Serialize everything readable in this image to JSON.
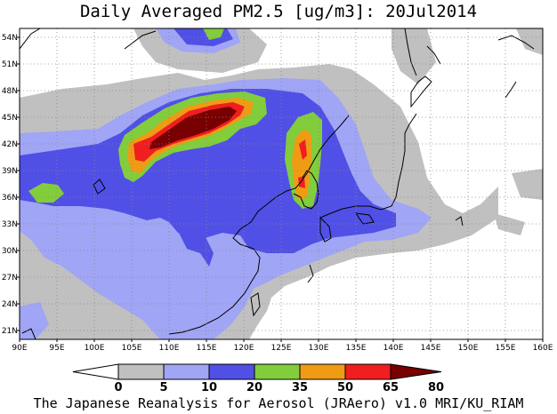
{
  "title": "Daily Averaged PM2.5 [ug/m3]: 20Jul2014",
  "footer": "The Japanese Reanalysis for Aerosol (JRAero) v1.0 MRI/KU_RIAM",
  "map": {
    "lon_range": [
      90,
      160
    ],
    "lat_range": [
      20,
      55
    ],
    "lon_ticks": [
      "90E",
      "95E",
      "100E",
      "105E",
      "110E",
      "115E",
      "120E",
      "125E",
      "130E",
      "135E",
      "140E",
      "145E",
      "150E",
      "155E",
      "160E"
    ],
    "lat_ticks": [
      "54N",
      "51N",
      "48N",
      "45N",
      "42N",
      "39N",
      "36N",
      "33N",
      "30N",
      "27N",
      "24N",
      "21N"
    ],
    "grid": "dotted"
  },
  "colorbar": {
    "levels": [
      "0",
      "5",
      "10",
      "20",
      "35",
      "50",
      "65",
      "80"
    ],
    "colors": [
      "#ffffff",
      "#c0c0c0",
      "#a0a5f5",
      "#5050e6",
      "#82cd3c",
      "#f09b14",
      "#f01e1e",
      "#780000"
    ]
  }
}
